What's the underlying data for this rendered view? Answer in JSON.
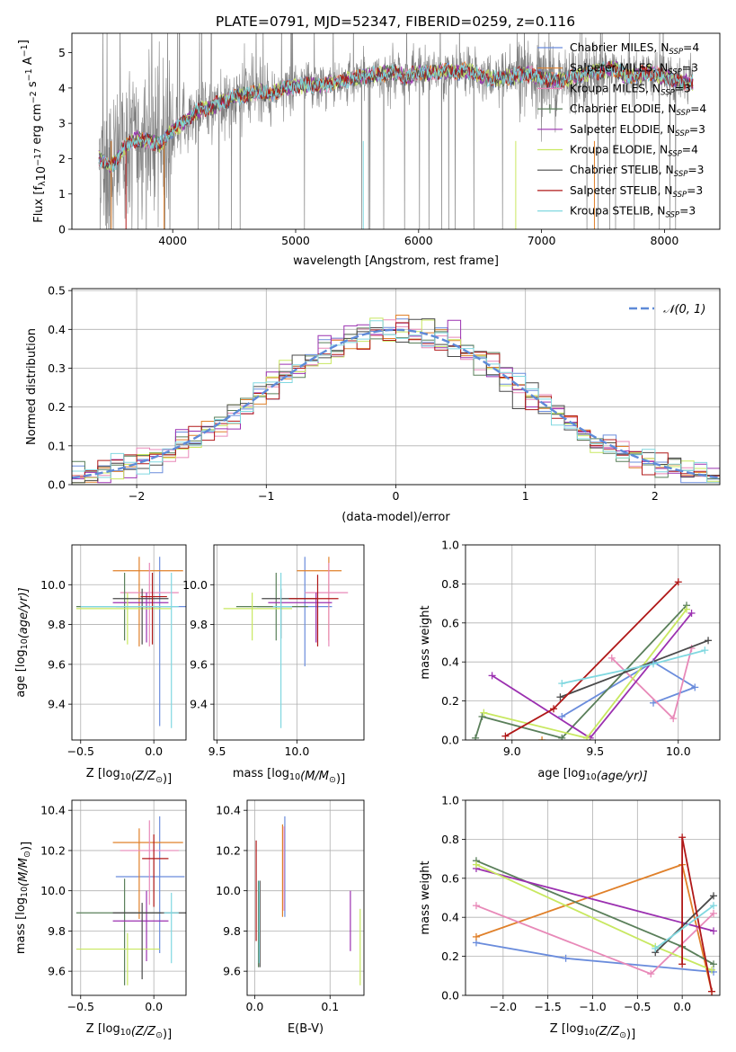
{
  "figure": {
    "title": "PLATE=0791, MJD=52347, FIBERID=0259, z=0.116"
  },
  "models": [
    {
      "name": "Chabrier MILES, N$_{SSP}$=4",
      "short": "Chabrier MILES",
      "nssp": "4",
      "color": "#6a8cdc"
    },
    {
      "name": "Salpeter MILES, N$_{SSP}$=3",
      "short": "Salpeter MILES",
      "nssp": "3",
      "color": "#e0802a"
    },
    {
      "name": "Kroupa MILES, N$_{SSP}$=3",
      "short": "Kroupa MILES",
      "nssp": "3",
      "color": "#e889b8"
    },
    {
      "name": "Chabrier ELODIE, N$_{SSP}$=4",
      "short": "Chabrier ELODIE",
      "nssp": "4",
      "color": "#5a7f5a"
    },
    {
      "name": "Salpeter ELODIE, N$_{SSP}$=3",
      "short": "Salpeter ELODIE",
      "nssp": "3",
      "color": "#9b30b0"
    },
    {
      "name": "Kroupa ELODIE, N$_{SSP}$=4",
      "short": "Kroupa ELODIE",
      "nssp": "4",
      "color": "#c8e860"
    },
    {
      "name": "Chabrier STELIB, N$_{SSP}$=3",
      "short": "Chabrier STELIB",
      "nssp": "3",
      "color": "#4a4a4a"
    },
    {
      "name": "Salpeter STELIB, N$_{SSP}$=3",
      "short": "Salpeter STELIB",
      "nssp": "3",
      "color": "#b01818"
    },
    {
      "name": "Kroupa STELIB, N$_{SSP}$=3",
      "short": "Kroupa STELIB",
      "nssp": "3",
      "color": "#80d8e0"
    }
  ],
  "chart_data": [
    {
      "id": "spectrum",
      "type": "line",
      "xlabel": "wavelength [Angstrom, rest frame]",
      "ylabel_main": "Flux [f",
      "ylabel_sub": "λ",
      "ylabel_rest": "10",
      "ylabel_exp1": "−17",
      "ylabel_mid": " erg cm",
      "ylabel_exp2": "−2",
      "ylabel_s": " s",
      "ylabel_exp3": "−1",
      "ylabel_A": " A",
      "ylabel_exp4": "−1",
      "ylabel_end": "]",
      "xlim": [
        3180,
        8450
      ],
      "ylim": [
        0,
        5.55
      ],
      "xticks": [
        4000,
        5000,
        6000,
        7000,
        8000
      ],
      "yticks": [
        0,
        1,
        2,
        3,
        4,
        5
      ],
      "data_color": "#808080",
      "continuum_x": [
        3400,
        3500,
        3600,
        3700,
        3800,
        3900,
        4000,
        4100,
        4200,
        4300,
        4400,
        4500,
        4600,
        4700,
        4800,
        4900,
        5000,
        5100,
        5200,
        5300,
        5400,
        5500,
        5600,
        5700,
        5800,
        5900,
        6000,
        6100,
        6200,
        6300,
        6400,
        6500,
        6600,
        6700,
        6800,
        6900,
        7000,
        7100,
        7200,
        7300,
        7400,
        7500,
        7600,
        7700,
        7800,
        7900,
        8000,
        8100,
        8200
      ],
      "continuum_y": [
        2.0,
        1.75,
        2.3,
        2.55,
        2.5,
        2.4,
        2.8,
        3.05,
        3.35,
        3.45,
        3.6,
        3.75,
        3.8,
        3.9,
        3.8,
        4.0,
        4.05,
        4.1,
        4.05,
        4.15,
        4.2,
        4.3,
        4.35,
        4.4,
        4.45,
        4.3,
        4.45,
        4.4,
        4.5,
        4.45,
        4.5,
        4.35,
        4.25,
        4.3,
        4.35,
        4.4,
        4.3,
        4.2,
        4.25,
        4.35,
        4.45,
        4.5,
        4.55,
        4.3,
        4.4,
        4.45,
        4.3,
        4.2,
        4.15
      ]
    },
    {
      "id": "residuals",
      "type": "histogram",
      "xlabel": "(data-model)/error",
      "ylabel": "Normed distribution",
      "xlim": [
        -2.5,
        2.5
      ],
      "ylim": [
        0,
        0.505
      ],
      "xticks": [
        -2,
        -1,
        0,
        1,
        2
      ],
      "yticks": [
        0.0,
        0.1,
        0.2,
        0.3,
        0.4,
        0.5
      ],
      "bin_edges_start": -2.5,
      "bin_width": 0.1,
      "gauss_label": "𝒩(0, 1)",
      "gauss_color": "#5e8ad8"
    },
    {
      "id": "age_vs_Z",
      "type": "errorbar",
      "xlabel_pre": "Z [log",
      "xlabel_sub": "10",
      "xlabel_post": "(Z/Z",
      "xlabel_sun": "⊙",
      "xlabel_end": ")]",
      "ylabel_pre": "age  [log",
      "ylabel_sub": "10",
      "ylabel_post": "(age/yr)]",
      "xlim": [
        -0.56,
        0.22
      ],
      "ylim": [
        9.22,
        10.2
      ],
      "xticks": [
        -0.5,
        0.0
      ],
      "yticks": [
        9.4,
        9.6,
        9.8,
        10.0
      ],
      "points": [
        {
          "model": 0,
          "x": 0.04,
          "y": 9.89,
          "xerr": [
            0.3,
            0.21
          ],
          "yerr": [
            0.6,
            0.25
          ]
        },
        {
          "model": 1,
          "x": -0.1,
          "y": 10.07,
          "xerr": [
            0.18,
            0.3
          ],
          "yerr": [
            0.38,
            0.07
          ]
        },
        {
          "model": 2,
          "x": -0.03,
          "y": 9.96,
          "xerr": [
            0.2,
            0.2
          ],
          "yerr": [
            0.27,
            0.15
          ]
        },
        {
          "model": 3,
          "x": -0.2,
          "y": 9.89,
          "xerr": [
            0.33,
            0.25
          ],
          "yerr": [
            0.17,
            0.17
          ]
        },
        {
          "model": 4,
          "x": -0.05,
          "y": 9.91,
          "xerr": [
            0.23,
            0.15
          ],
          "yerr": [
            0.2,
            0.05
          ]
        },
        {
          "model": 5,
          "x": -0.18,
          "y": 9.88,
          "xerr": [
            0.35,
            0.3
          ],
          "yerr": [
            0.18,
            0.08
          ]
        },
        {
          "model": 6,
          "x": -0.08,
          "y": 9.93,
          "xerr": [
            0.2,
            0.18
          ],
          "yerr": [
            0.23,
            0.05
          ]
        },
        {
          "model": 7,
          "x": -0.01,
          "y": 9.94,
          "xerr": [
            0.08,
            0.1
          ],
          "yerr": [
            0.24,
            0.12
          ]
        },
        {
          "model": 8,
          "x": 0.12,
          "y": 9.89,
          "xerr": [
            0.62,
            0.05
          ],
          "yerr": [
            0.61,
            0.17
          ]
        }
      ]
    },
    {
      "id": "age_vs_mass",
      "type": "errorbar",
      "xlabel_pre": "mass [log",
      "xlabel_sub": "10",
      "xlabel_post": "(M/M",
      "xlabel_sun": "⊙",
      "xlabel_end": ")]",
      "xlim": [
        9.48,
        10.42
      ],
      "ylim": [
        9.22,
        10.2
      ],
      "xticks": [
        9.5,
        10.0
      ],
      "yticks": [
        9.4,
        9.6,
        9.8,
        10.0
      ],
      "points": [
        {
          "model": 0,
          "x": 10.05,
          "y": 9.89,
          "xerr": [
            0.3,
            0.17
          ],
          "yerr": [
            0.3,
            0.25
          ]
        },
        {
          "model": 1,
          "x": 10.2,
          "y": 10.07,
          "xerr": [
            0.2,
            0.08
          ],
          "yerr": [
            0.35,
            0.07
          ]
        },
        {
          "model": 2,
          "x": 10.2,
          "y": 9.96,
          "xerr": [
            0.15,
            0.12
          ],
          "yerr": [
            0.27,
            0.15
          ]
        },
        {
          "model": 3,
          "x": 9.87,
          "y": 9.89,
          "xerr": [
            0.25,
            0.2
          ],
          "yerr": [
            0.17,
            0.17
          ]
        },
        {
          "model": 4,
          "x": 10.12,
          "y": 9.91,
          "xerr": [
            0.3,
            0.1
          ],
          "yerr": [
            0.2,
            0.05
          ]
        },
        {
          "model": 5,
          "x": 9.72,
          "y": 9.88,
          "xerr": [
            0.18,
            0.25
          ],
          "yerr": [
            0.16,
            0.08
          ]
        },
        {
          "model": 6,
          "x": 9.9,
          "y": 9.93,
          "xerr": [
            0.12,
            0.22
          ],
          "yerr": [
            0.2,
            0.05
          ]
        },
        {
          "model": 7,
          "x": 10.13,
          "y": 9.93,
          "xerr": [
            0.18,
            0.13
          ],
          "yerr": [
            0.24,
            0.12
          ]
        },
        {
          "model": 8,
          "x": 9.9,
          "y": 9.89,
          "xerr": [
            0.05,
            0.07
          ],
          "yerr": [
            0.61,
            0.17
          ]
        }
      ]
    },
    {
      "id": "weight_vs_age",
      "type": "line",
      "xlabel_pre": "age  [log",
      "xlabel_sub": "10",
      "xlabel_post": "(age/yr)]",
      "ylabel": "mass weight",
      "xlim": [
        8.72,
        10.25
      ],
      "ylim": [
        0,
        1.0
      ],
      "xticks": [
        9.0,
        9.5,
        10.0
      ],
      "yticks": [
        0.0,
        0.2,
        0.4,
        0.6,
        0.8,
        1.0
      ],
      "series": [
        {
          "model": 0,
          "x": [
            9.3,
            9.85,
            10.1,
            9.85
          ],
          "y": [
            0.12,
            0.4,
            0.27,
            0.19
          ]
        },
        {
          "model": 1,
          "x": 9.18,
          "y": 0.0
        },
        {
          "model": 2,
          "x": [
            9.6,
            9.97,
            10.08
          ],
          "y": [
            0.42,
            0.11,
            0.47
          ]
        },
        {
          "model": 3,
          "x": [
            8.78,
            8.82,
            9.3,
            10.05
          ],
          "y": [
            0.01,
            0.12,
            0.01,
            0.69
          ]
        },
        {
          "model": 4,
          "x": [
            8.88,
            9.47,
            10.08
          ],
          "y": [
            0.33,
            0.01,
            0.65
          ]
        },
        {
          "model": 5,
          "x": [
            8.83,
            9.45,
            10.05
          ],
          "y": [
            0.14,
            0.01,
            0.67
          ]
        },
        {
          "model": 6,
          "x": [
            9.29,
            10.18
          ],
          "y": [
            0.22,
            0.51
          ]
        },
        {
          "model": 7,
          "x": [
            8.96,
            9.25,
            10.0
          ],
          "y": [
            0.02,
            0.16,
            0.81
          ]
        },
        {
          "model": 8,
          "x": [
            9.3,
            9.85,
            10.16
          ],
          "y": [
            0.29,
            0.39,
            0.46
          ]
        }
      ]
    },
    {
      "id": "mass_vs_Z",
      "type": "errorbar",
      "xlabel_pre": "Z [log",
      "xlabel_sub": "10",
      "xlabel_post": "(Z/Z",
      "xlabel_sun": "⊙",
      "xlabel_end": ")]",
      "ylabel_pre": "mass [log",
      "ylabel_sub": "10",
      "ylabel_post": "(M/M",
      "ylabel_sun": "⊙",
      "ylabel_end": ")]",
      "xlim": [
        -0.56,
        0.22
      ],
      "ylim": [
        9.48,
        10.45
      ],
      "xticks": [
        -0.5,
        0.0
      ],
      "yticks": [
        9.6,
        9.8,
        10.0,
        10.2,
        10.4
      ],
      "points": [
        {
          "model": 0,
          "x": 0.04,
          "y": 10.07,
          "xerr": [
            0.3,
            0.17
          ],
          "yerr": [
            0.38,
            0.3
          ]
        },
        {
          "model": 1,
          "x": -0.1,
          "y": 10.24,
          "xerr": [
            0.18,
            0.3
          ],
          "yerr": [
            0.38,
            0.07
          ]
        },
        {
          "model": 2,
          "x": -0.03,
          "y": 10.2,
          "xerr": [
            0.2,
            0.2
          ],
          "yerr": [
            0.27,
            0.15
          ]
        },
        {
          "model": 3,
          "x": -0.2,
          "y": 9.89,
          "xerr": [
            0.33,
            0.25
          ],
          "yerr": [
            0.36,
            0.17
          ]
        },
        {
          "model": 4,
          "x": -0.05,
          "y": 9.85,
          "xerr": [
            0.23,
            0.15
          ],
          "yerr": [
            0.2,
            0.15
          ]
        },
        {
          "model": 5,
          "x": -0.18,
          "y": 9.71,
          "xerr": [
            0.35,
            0.22
          ],
          "yerr": [
            0.18,
            0.08
          ]
        },
        {
          "model": 6,
          "x": -0.08,
          "y": 9.89,
          "xerr": [
            0.2,
            0.3
          ],
          "yerr": [
            0.33,
            0.05
          ]
        },
        {
          "model": 7,
          "x": 0.0,
          "y": 10.16,
          "xerr": [
            0.08,
            0.1
          ],
          "yerr": [
            0.24,
            0.12
          ]
        },
        {
          "model": 8,
          "x": 0.12,
          "y": 9.89,
          "xerr": [
            0.05,
            0.05
          ],
          "yerr": [
            0.25,
            0.1
          ]
        }
      ]
    },
    {
      "id": "mass_vs_ebv",
      "type": "errorbar",
      "xlabel": "E(B-V)",
      "xlim": [
        -0.01,
        0.145
      ],
      "ylim": [
        9.48,
        10.45
      ],
      "xticks": [
        0.0,
        0.1
      ],
      "yticks": [
        9.6,
        9.8,
        10.0,
        10.2,
        10.4
      ],
      "points": [
        {
          "model": 0,
          "x": 0.04,
          "y": 10.07,
          "yerr": [
            0.2,
            0.3
          ]
        },
        {
          "model": 1,
          "x": 0.037,
          "y": 10.1,
          "yerr": [
            0.23,
            0.23
          ]
        },
        {
          "model": 2,
          "x": 0.039,
          "y": 10.1,
          "yerr": [
            0.2,
            0.22
          ]
        },
        {
          "model": 3,
          "x": 0.005,
          "y": 9.84,
          "yerr": [
            0.22,
            0.21
          ]
        },
        {
          "model": 4,
          "x": 0.127,
          "y": 9.85,
          "yerr": [
            0.15,
            0.15
          ]
        },
        {
          "model": 5,
          "x": 0.14,
          "y": 9.71,
          "yerr": [
            0.18,
            0.2
          ]
        },
        {
          "model": 6,
          "x": 0.007,
          "y": 9.84,
          "yerr": [
            0.22,
            0.21
          ]
        },
        {
          "model": 7,
          "x": 0.002,
          "y": 9.95,
          "yerr": [
            0.2,
            0.3
          ]
        },
        {
          "model": 8,
          "x": 0.006,
          "y": 9.84,
          "yerr": [
            0.2,
            0.21
          ]
        }
      ]
    },
    {
      "id": "weight_vs_Z",
      "type": "line",
      "xlabel_pre": "Z [log",
      "xlabel_sub": "10",
      "xlabel_post": "(Z/Z",
      "xlabel_sun": "⊙",
      "xlabel_end": ")]",
      "ylabel": "mass weight",
      "xlim": [
        -2.42,
        0.42
      ],
      "ylim": [
        0,
        1.0
      ],
      "xticks": [
        -2.0,
        -1.5,
        -1.0,
        -0.5,
        0.0
      ],
      "yticks": [
        0.0,
        0.2,
        0.4,
        0.6,
        0.8,
        1.0
      ],
      "series": [
        {
          "model": 0,
          "x": [
            -2.3,
            -1.3,
            0.35
          ],
          "y": [
            0.27,
            0.19,
            0.12
          ]
        },
        {
          "model": 1,
          "x": [
            -2.3,
            0.0,
            0.33
          ],
          "y": [
            0.3,
            0.67,
            0.02
          ]
        },
        {
          "model": 2,
          "x": [
            -2.3,
            -0.35,
            0.35
          ],
          "y": [
            0.46,
            0.11,
            0.42
          ]
        },
        {
          "model": 3,
          "x": [
            -2.3,
            0.0,
            0.35
          ],
          "y": [
            0.69,
            0.25,
            0.16
          ]
        },
        {
          "model": 4,
          "x": [
            -2.3,
            0.35
          ],
          "y": [
            0.65,
            0.33
          ]
        },
        {
          "model": 5,
          "x": [
            -2.3,
            -0.3,
            0.33
          ],
          "y": [
            0.67,
            0.25,
            0.13
          ]
        },
        {
          "model": 6,
          "x": [
            -0.3,
            0.35
          ],
          "y": [
            0.22,
            0.51
          ]
        },
        {
          "model": 7,
          "x": [
            0.0,
            0.0,
            0.33
          ],
          "y": [
            0.16,
            0.81,
            0.02
          ]
        },
        {
          "model": 8,
          "x": [
            -0.3,
            0.35
          ],
          "y": [
            0.24,
            0.46
          ]
        }
      ]
    }
  ]
}
